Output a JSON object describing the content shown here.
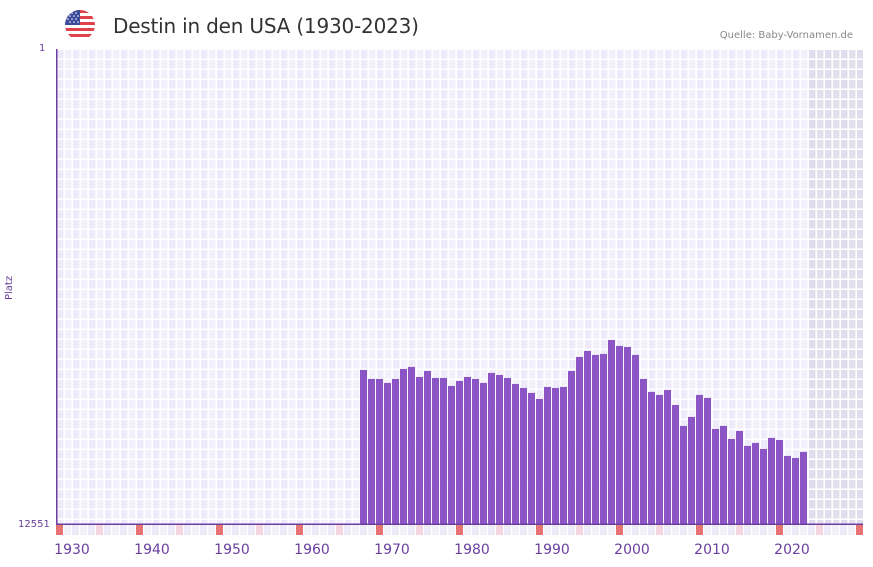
{
  "header": {
    "title": "Destin in den USA (1930-2023)",
    "flag_icon": "us-flag-icon",
    "source": "Quelle: Baby-Vornamen.de"
  },
  "colors": {
    "bar": "#8c55c6",
    "axis": "#6a3fa0",
    "grid_a": "#eeeafa",
    "grid_b": "#f3f0fc",
    "future_shade": "#e3e0ee",
    "decade_mark": "#e57373",
    "half_decade_mark": "#f5d6de"
  },
  "chart_data": {
    "type": "bar",
    "title": "Destin in den USA (1930-2023)",
    "xlabel": "",
    "ylabel": "Platz",
    "y_inverted": true,
    "ylim": [
      1,
      12551
    ],
    "yticks": [
      "1",
      "12551"
    ],
    "xticks": [
      "1930",
      "1940",
      "1950",
      "1960",
      "1970",
      "1980",
      "1990",
      "2000",
      "2010",
      "2020"
    ],
    "x_range": [
      1928,
      2028
    ],
    "grid": true,
    "categories": [
      1966,
      1967,
      1968,
      1969,
      1970,
      1971,
      1972,
      1973,
      1974,
      1975,
      1976,
      1977,
      1978,
      1979,
      1980,
      1981,
      1982,
      1983,
      1984,
      1985,
      1986,
      1987,
      1988,
      1989,
      1990,
      1991,
      1992,
      1993,
      1994,
      1995,
      1996,
      1997,
      1998,
      1999,
      2000,
      2001,
      2002,
      2003,
      2004,
      2005,
      2006,
      2007,
      2008,
      2009,
      2010,
      2011,
      2012,
      2013,
      2014,
      2015,
      2016,
      2017,
      2018,
      2019,
      2020,
      2021
    ],
    "values": [
      8463,
      8700,
      8700,
      8806,
      8700,
      8437,
      8384,
      8648,
      8490,
      8674,
      8674,
      8885,
      8753,
      8648,
      8700,
      8806,
      8542,
      8595,
      8674,
      8832,
      8938,
      9069,
      9227,
      8911,
      8938,
      8911,
      8490,
      8120,
      7962,
      8067,
      8041,
      7672,
      7830,
      7857,
      8067,
      8700,
      9043,
      9122,
      8990,
      9386,
      9939,
      9702,
      9122,
      9201,
      10018,
      9939,
      10282,
      10071,
      10466,
      10387,
      10545,
      10255,
      10308,
      10730,
      10783,
      10624
    ]
  },
  "y_axis": {
    "top_label": "1",
    "bottom_label": "12551",
    "title": "Platz"
  }
}
